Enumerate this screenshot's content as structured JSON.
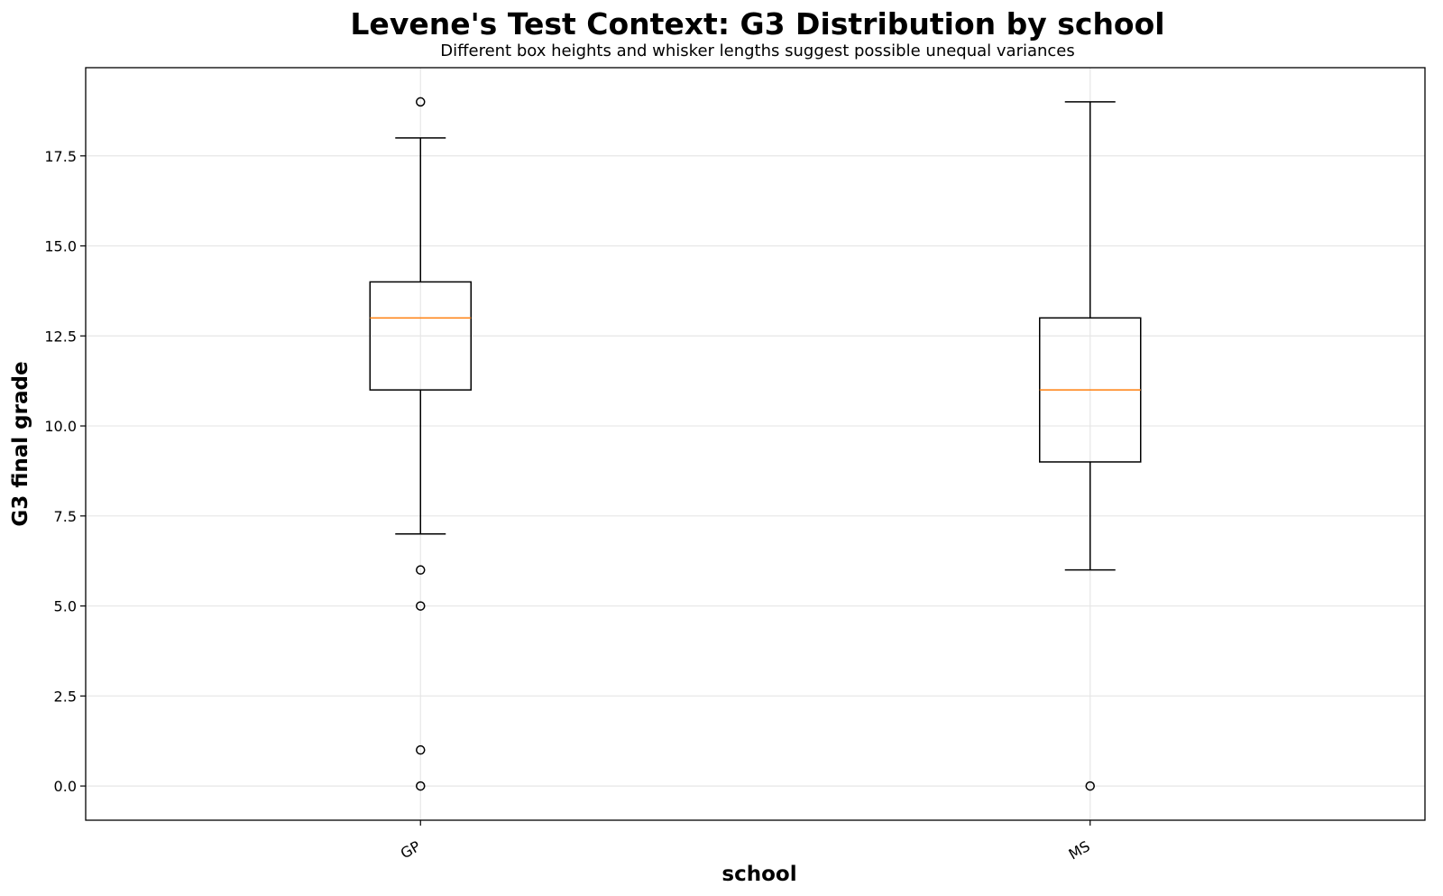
{
  "chart_data": {
    "type": "box",
    "title": "Levene's Test Context: G3 Distribution by school",
    "subtitle": "Different box heights and whisker lengths suggest possible unequal variances",
    "xlabel": "school",
    "ylabel": "G3 final grade",
    "categories": [
      "GP",
      "MS"
    ],
    "ylim": [
      -0.95,
      19.95
    ],
    "yticks": [
      0.0,
      2.5,
      5.0,
      7.5,
      10.0,
      12.5,
      15.0,
      17.5
    ],
    "ytick_labels": [
      "0.0",
      "2.5",
      "5.0",
      "7.5",
      "10.0",
      "12.5",
      "15.0",
      "17.5"
    ],
    "grid": true,
    "median_color": "#ff7f0e",
    "box_color": "#000000",
    "boxes": [
      {
        "category": "GP",
        "whisker_low": 7,
        "q1": 11,
        "median": 13,
        "q3": 14,
        "whisker_high": 18,
        "outliers": [
          19,
          6,
          5,
          1,
          0
        ]
      },
      {
        "category": "MS",
        "whisker_low": 6,
        "q1": 9,
        "median": 11,
        "q3": 13,
        "whisker_high": 19,
        "outliers": [
          0
        ]
      }
    ]
  }
}
